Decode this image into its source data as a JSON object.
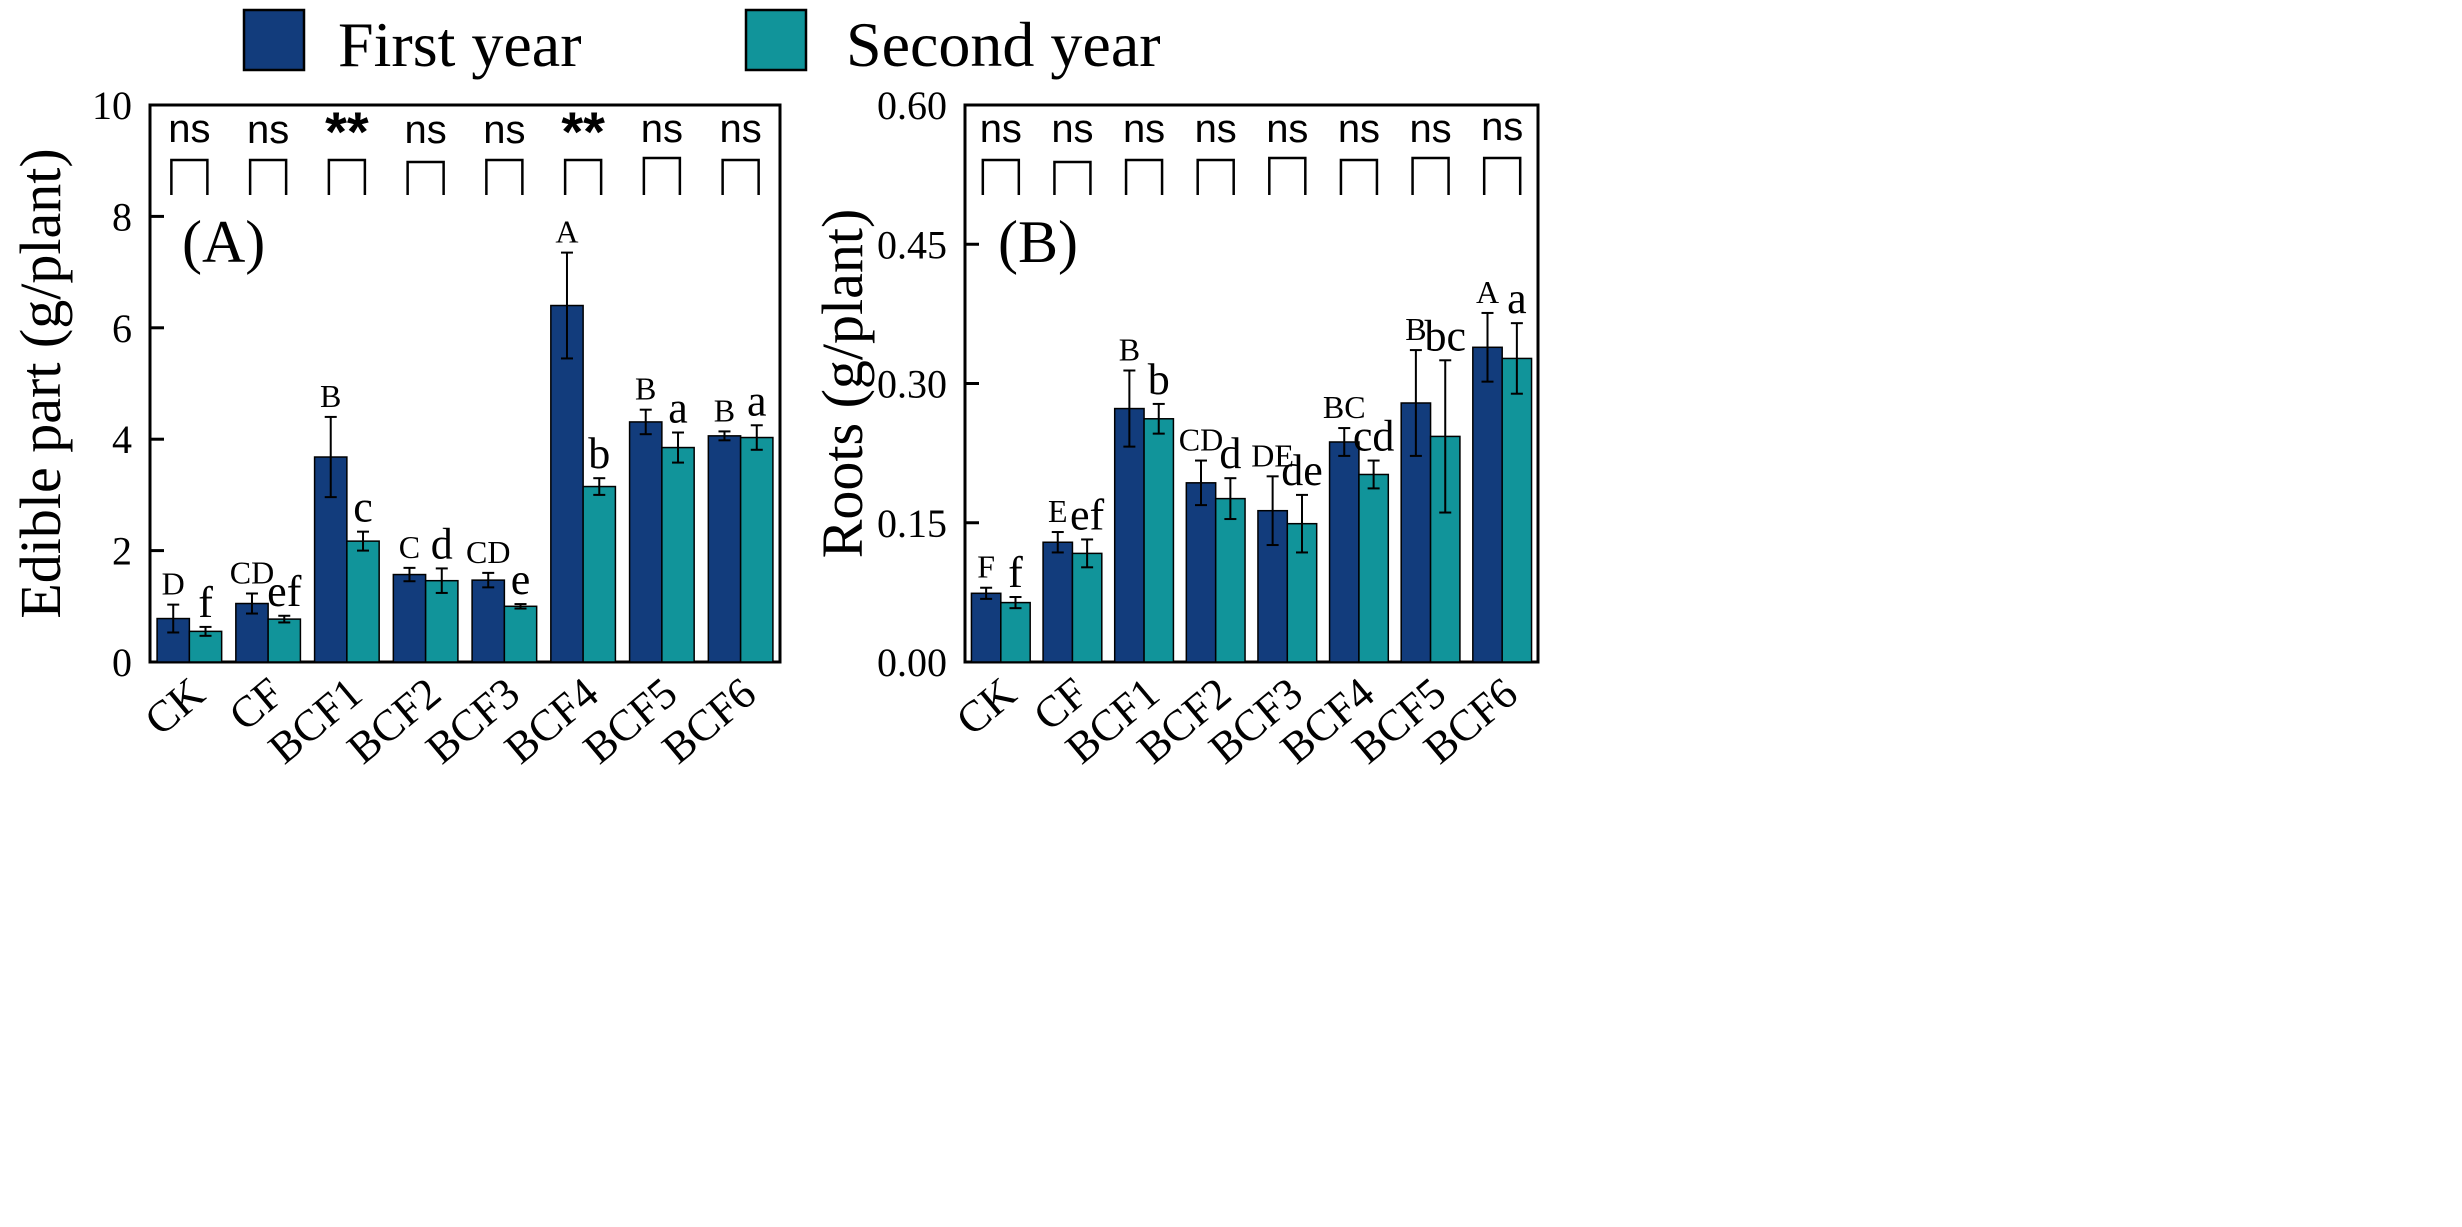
{
  "legend": {
    "position": "top-left",
    "items": [
      {
        "label": "First year",
        "color": "#123C7C"
      },
      {
        "label": "Second year",
        "color": "#11949A"
      }
    ]
  },
  "chart_data": [
    {
      "type": "bar",
      "panel_label": "(A)",
      "ylabel": "Edible part (g/plant)",
      "ylim": [
        0,
        10
      ],
      "yticks": [
        "0",
        "2",
        "4",
        "6",
        "8",
        "10"
      ],
      "categories": [
        "CK",
        "CF",
        "BCF1",
        "BCF2",
        "BCF3",
        "BCF4",
        "BCF5",
        "BCF6"
      ],
      "series": [
        {
          "name": "First year",
          "values": [
            0.78,
            1.05,
            3.68,
            1.57,
            1.47,
            6.4,
            4.31,
            4.06
          ],
          "errors": [
            0.25,
            0.18,
            0.72,
            0.12,
            0.13,
            0.95,
            0.22,
            0.08
          ],
          "letters": [
            "D",
            "CD",
            "B",
            "C",
            "CD",
            "A",
            "B",
            "B"
          ]
        },
        {
          "name": "Second year",
          "values": [
            0.55,
            0.77,
            2.17,
            1.46,
            1.0,
            3.15,
            3.85,
            4.03
          ],
          "errors": [
            0.08,
            0.06,
            0.17,
            0.22,
            0.04,
            0.15,
            0.27,
            0.22
          ],
          "letters": [
            "f",
            "ef",
            "c",
            "d",
            "e",
            "b",
            "a",
            "a"
          ]
        }
      ],
      "significance": [
        "ns",
        "ns",
        "**",
        "ns",
        "ns",
        "**",
        "ns",
        "ns"
      ]
    },
    {
      "type": "bar",
      "panel_label": "(B)",
      "ylabel": "Roots (g/plant)",
      "ylim": [
        0,
        0.6
      ],
      "yticks": [
        "0.00",
        "0.15",
        "0.30",
        "0.45",
        "0.60"
      ],
      "categories": [
        "CK",
        "CF",
        "BCF1",
        "BCF2",
        "BCF3",
        "BCF4",
        "BCF5",
        "BCF6"
      ],
      "series": [
        {
          "name": "First year",
          "values": [
            0.074,
            0.129,
            0.273,
            0.193,
            0.163,
            0.237,
            0.279,
            0.339
          ],
          "errors": [
            0.006,
            0.011,
            0.041,
            0.024,
            0.037,
            0.015,
            0.057,
            0.037
          ],
          "letters": [
            "F",
            "E",
            "B",
            "CD",
            "DE",
            "BC",
            "B",
            "A"
          ]
        },
        {
          "name": "Second year",
          "values": [
            0.064,
            0.117,
            0.262,
            0.176,
            0.149,
            0.202,
            0.243,
            0.327
          ],
          "errors": [
            0.006,
            0.015,
            0.016,
            0.022,
            0.031,
            0.015,
            0.082,
            0.038
          ],
          "letters": [
            "f",
            "ef",
            "b",
            "d",
            "de",
            "cd",
            "bc",
            "a"
          ]
        }
      ],
      "significance": [
        "ns",
        "ns",
        "ns",
        "ns",
        "ns",
        "ns",
        "ns",
        "ns"
      ]
    }
  ]
}
